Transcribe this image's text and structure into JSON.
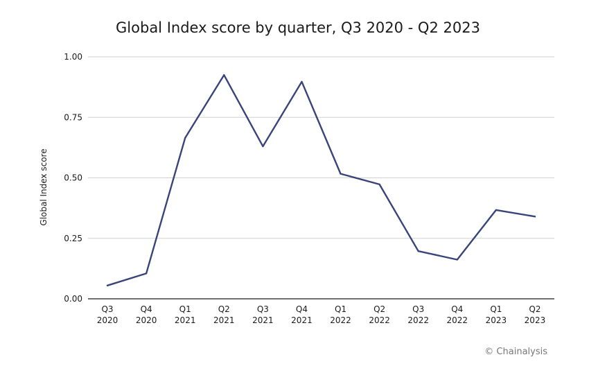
{
  "credit": "© Chainalysis",
  "chart_data": {
    "type": "line",
    "title": "Global Index score by quarter, Q3 2020 - Q2 2023",
    "xlabel": "",
    "ylabel": "Global Index score",
    "categories": [
      [
        "Q3",
        "2020"
      ],
      [
        "Q4",
        "2020"
      ],
      [
        "Q1",
        "2021"
      ],
      [
        "Q2",
        "2021"
      ],
      [
        "Q3",
        "2021"
      ],
      [
        "Q4",
        "2021"
      ],
      [
        "Q1",
        "2022"
      ],
      [
        "Q2",
        "2022"
      ],
      [
        "Q3",
        "2022"
      ],
      [
        "Q4",
        "2022"
      ],
      [
        "Q1",
        "2023"
      ],
      [
        "Q2",
        "2023"
      ]
    ],
    "values": [
      0.055,
      0.105,
      0.665,
      0.925,
      0.63,
      0.897,
      0.517,
      0.473,
      0.197,
      0.162,
      0.367,
      0.34
    ],
    "ylim": [
      0,
      1
    ],
    "yticks": [
      "0.00",
      "0.25",
      "0.50",
      "0.75",
      "1.00"
    ],
    "grid": true,
    "line_color": "#38447a",
    "grid_color": "#d0d0d0",
    "axis_color": "#1a1a1a"
  }
}
